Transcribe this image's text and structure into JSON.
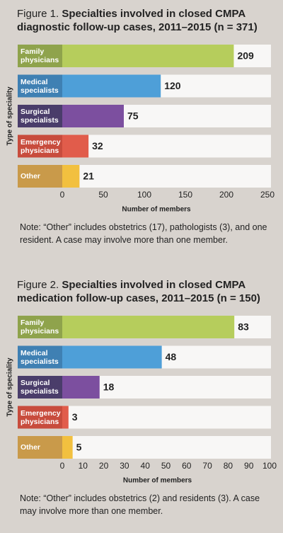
{
  "chart_data": [
    {
      "type": "hbar",
      "figure_label": "Figure 1.",
      "title": "Specialties involved in closed CMPA diagnostic follow-up cases, 2011–2015 (n = 371)",
      "categories": [
        "Family physicians",
        "Medical specialists",
        "Surgical specialists",
        "Emergency physicians",
        "Other"
      ],
      "values": [
        209,
        120,
        75,
        32,
        21
      ],
      "colors": [
        "#b6cd5c",
        "#4e9fd8",
        "#7c4f9f",
        "#e15c4b",
        "#f2c03f"
      ],
      "label_colors": [
        "#8fa34c",
        "#3f80b3",
        "#4a3d6a",
        "#c84c3d",
        "#c99a4a"
      ],
      "xlim": [
        0,
        250
      ],
      "xticks": [
        0,
        50,
        100,
        150,
        200,
        250
      ],
      "xlabel": "Number of members",
      "ylabel": "Type of speciality",
      "note": "Note: “Other” includes obstetrics (17), pathologists (3), and one resident. A case may involve more than one member."
    },
    {
      "type": "hbar",
      "figure_label": "Figure 2.",
      "title": "Specialties involved in closed CMPA medication follow-up cases, 2011–2015 (n = 150)",
      "categories": [
        "Family physicians",
        "Medical specialists",
        "Surgical specialists",
        "Emergency physicians",
        "Other"
      ],
      "values": [
        83,
        48,
        18,
        3,
        5
      ],
      "colors": [
        "#b6cd5c",
        "#4e9fd8",
        "#7c4f9f",
        "#e15c4b",
        "#f2c03f"
      ],
      "label_colors": [
        "#8fa34c",
        "#3f80b3",
        "#4a3d6a",
        "#c84c3d",
        "#c99a4a"
      ],
      "xlim": [
        0,
        100
      ],
      "xticks": [
        0,
        10,
        20,
        30,
        40,
        50,
        60,
        70,
        80,
        90,
        100
      ],
      "xlabel": "Number of members",
      "ylabel": "Type of speciality",
      "note": "Note: “Other” includes obstetrics (2) and residents (3). A case may involve more than one member."
    }
  ]
}
